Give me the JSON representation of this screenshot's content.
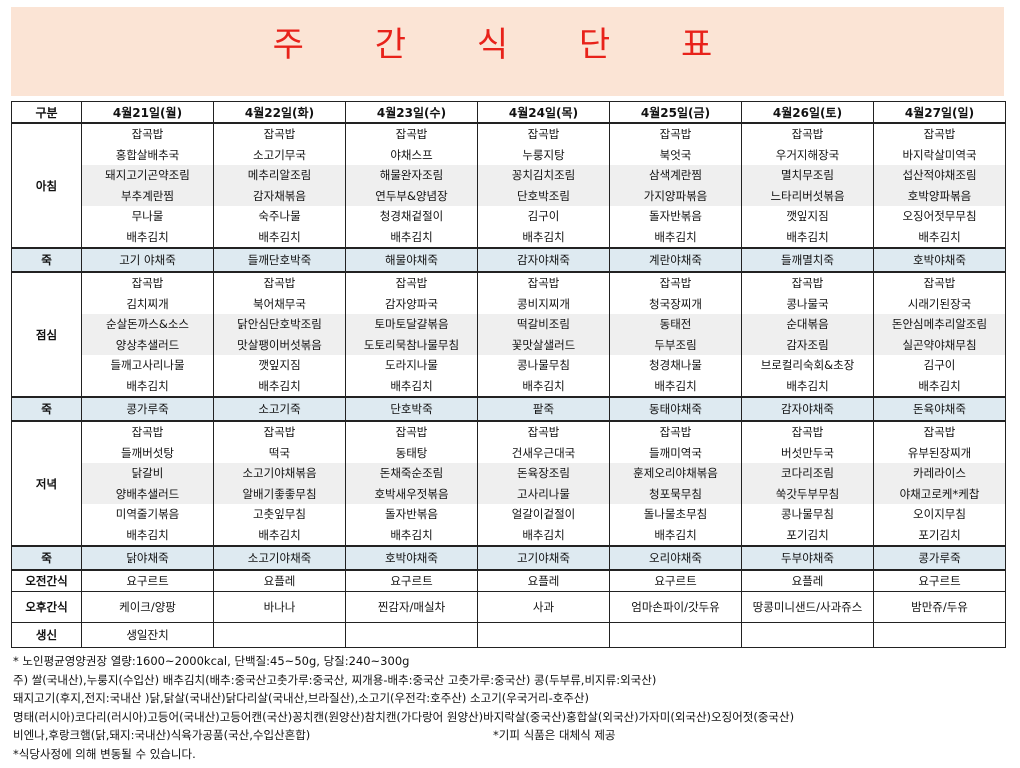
{
  "title": "주 간 식 단 표",
  "header": [
    "구분",
    "4월21일(월)",
    "4월22일(화)",
    "4월23일(수)",
    "4월24일(목)",
    "4월25일(금)",
    "4월26일(토)",
    "4월27일(일)"
  ],
  "breakfast": {
    "label": "아침",
    "days": [
      [
        "잡곡밥",
        "홍합살배추국",
        "돼지고기곤약조림",
        "부추계란찜",
        "무나물",
        "배추김치"
      ],
      [
        "잡곡밥",
        "소고기무국",
        "메추리알조림",
        "감자채볶음",
        "숙주나물",
        "배추김치"
      ],
      [
        "잡곡밥",
        "야채스프",
        "해물완자조림",
        "연두부&양념장",
        "청경채겉절이",
        "배추김치"
      ],
      [
        "잡곡밥",
        "누룽지탕",
        "꽁치김치조림",
        "단호박조림",
        "김구이",
        "배추김치"
      ],
      [
        "잡곡밥",
        "북엇국",
        "삼색계란찜",
        "가지양파볶음",
        "돌자반볶음",
        "배추김치"
      ],
      [
        "잡곡밥",
        "우거지해장국",
        "멸치무조림",
        "느타리버섯볶음",
        "깻잎지짐",
        "배추김치"
      ],
      [
        "잡곡밥",
        "바지락살미역국",
        "섭산적야채조림",
        "호박양파볶음",
        "오징어젓무무침",
        "배추김치"
      ]
    ]
  },
  "porridge1": {
    "label": "죽",
    "days": [
      "고기 야채죽",
      "들깨단호박죽",
      "해물야채죽",
      "감자야채죽",
      "계란야채죽",
      "들깨멸치죽",
      "호박야채죽"
    ]
  },
  "lunch": {
    "label": "점심",
    "days": [
      [
        "잡곡밥",
        "김치찌개",
        "순살돈까스&소스",
        "양상추샐러드",
        "들깨고사리나물",
        "배추김치"
      ],
      [
        "잡곡밥",
        "북어채무국",
        "닭안심단호박조림",
        "맛살팽이버섯볶음",
        "깻잎지짐",
        "배추김치"
      ],
      [
        "잡곡밥",
        "감자양파국",
        "토마토달걀볶음",
        "도토리묵참나물무침",
        "도라지나물",
        "배추김치"
      ],
      [
        "잡곡밥",
        "콩비지찌개",
        "떡갈비조림",
        "꽃맛살샐러드",
        "콩나물무침",
        "배추김치"
      ],
      [
        "잡곡밥",
        "청국장찌개",
        "동태전",
        "두부조림",
        "청경채나물",
        "배추김치"
      ],
      [
        "잡곡밥",
        "콩나물국",
        "순대볶음",
        "감자조림",
        "브로컬리숙회&초장",
        "배추김치"
      ],
      [
        "잡곡밥",
        "시래기된장국",
        "돈안심메추리알조림",
        "실곤약야채무침",
        "김구이",
        "배추김치"
      ]
    ]
  },
  "porridge2": {
    "label": "죽",
    "days": [
      "콩가루죽",
      "소고기죽",
      "단호박죽",
      "팥죽",
      "동태야채죽",
      "감자야채죽",
      "돈육야채죽"
    ]
  },
  "dinner": {
    "label": "저녁",
    "days": [
      [
        "잡곡밥",
        "들깨버섯탕",
        "닭갈비",
        "양배추샐러드",
        "미역줄기볶음",
        "배추김치"
      ],
      [
        "잡곡밥",
        "떡국",
        "소고기야채볶음",
        "알배기좋좋무침",
        "고춧잎무침",
        "배추김치"
      ],
      [
        "잡곡밥",
        "동태탕",
        "돈채죽순조림",
        "호박새우젓볶음",
        "돌자반볶음",
        "배추김치"
      ],
      [
        "잡곡밥",
        "건새우근대국",
        "돈육장조림",
        "고사리나물",
        "얼갈이겉절이",
        "배추김치"
      ],
      [
        "잡곡밥",
        "들깨미역국",
        "훈제오리야채볶음",
        "청포묵무침",
        "돌나물초무침",
        "배추김치"
      ],
      [
        "잡곡밥",
        "버섯만두국",
        "코다리조림",
        "쑥갓두부무침",
        "콩나물무침",
        "포기김치"
      ],
      [
        "잡곡밥",
        "유부된장찌개",
        "카레라이스",
        "야채고로케*케찹",
        "오이지무침",
        "포기김치"
      ]
    ]
  },
  "porridge3": {
    "label": "죽",
    "days": [
      "닭야채죽",
      "소고기야채죽",
      "호박야채죽",
      "고기야채죽",
      "오리야채죽",
      "두부야채죽",
      "콩가루죽"
    ]
  },
  "am_snack": {
    "label": "오전간식",
    "days": [
      "요구르트",
      "요플레",
      "요구르트",
      "요플레",
      "요구르트",
      "요플레",
      "요구르트"
    ]
  },
  "pm_snack": {
    "label": "오후간식",
    "days": [
      "케이크/양팡",
      "바나나",
      "찐감자/매실차",
      "사과",
      "엄마손파이/갓두유",
      "땅콩미니샌드/사과쥬스",
      "밤만쥬/두유"
    ]
  },
  "birthday": {
    "label": "생신",
    "days": [
      "생일잔치",
      "",
      "",
      "",
      "",
      "",
      ""
    ]
  },
  "notes": {
    "line1": "* 노인평균영양권장 열량:1600~2000kcal, 단백질:45~50g, 당질:240~300g",
    "line2": "주) 쌀(국내산),누룽지(수입산) 배추김치(배추:중국산고춧가루:중국산, 찌개용-배추:중국산 고춧가루:중국산) 콩(두부류,비지류:외국산)",
    "line3": "돼지고기(후지,전지:국내산 )닭,닭살(국내산)닭다리살(국내산,브라질산),소고기(우전각:호주산) 소고기(우국거리-호주산)",
    "line4": "명태(러시아)코다리(러시아)고등어(국내산)고등어캔(국산)꽁치캔(원양산)참치캔(가다랑어 원양산)바지락살(중국산)홍합살(외국산)가자미(외국산)오징어젓(중국산)",
    "line5": "비엔나,후랑크햄(닭,돼지:국내산)식육가공품(국산,수입산혼합)",
    "line5b": "*기피 식품은 대체식 제공",
    "line6": "*식당사정에 의해 변동될 수 있습니다."
  }
}
